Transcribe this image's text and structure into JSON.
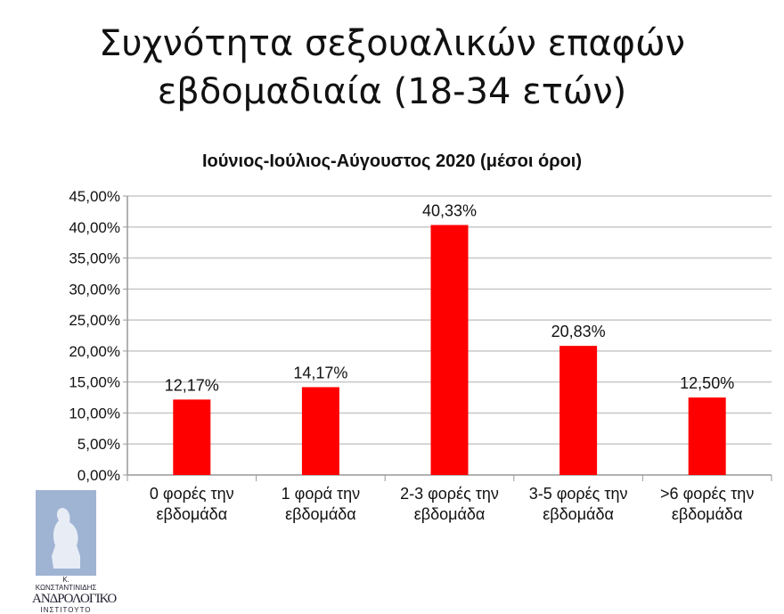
{
  "chart_data": {
    "type": "bar",
    "title": "Συχνότητα σεξουαλικών επαφών εβδομαδιαία (18-34 ετών)",
    "title_lines": [
      "Συχνότητα σεξουαλικών επαφών",
      "εβδομαδιαία (18-34 ετών)"
    ],
    "subtitle": "Ιούνιος-Ιούλιος-Αύγουστος 2020 (μέσοι όροι)",
    "categories": [
      [
        "0 φορές την",
        "εβδομάδα"
      ],
      [
        "1 φορά την",
        "εβδομάδα"
      ],
      [
        "2-3 φορές την",
        "εβδομάδα"
      ],
      [
        "3-5 φορές την",
        "εβδομάδα"
      ],
      [
        ">6 φορές την",
        "εβδομάδα"
      ]
    ],
    "values": [
      12.17,
      14.17,
      40.33,
      20.83,
      12.5
    ],
    "data_labels": [
      "12,17%",
      "14,17%",
      "40,33%",
      "20,83%",
      "12,50%"
    ],
    "yticks": [
      "0,00%",
      "5,00%",
      "10,00%",
      "15,00%",
      "20,00%",
      "25,00%",
      "30,00%",
      "35,00%",
      "40,00%",
      "45,00%"
    ],
    "ylim": [
      0,
      45
    ],
    "grid": true,
    "bar_color": "#ff0000"
  },
  "logo": {
    "line1": "Κ. ΚΩΝΣΤΑΝΤΙΝΙΔΗΣ",
    "line2": "ΑΝΔΡΟΛΟΓΙΚΟ",
    "line3": "ΙΝΣΤΙΤΟΥΤΟ"
  }
}
